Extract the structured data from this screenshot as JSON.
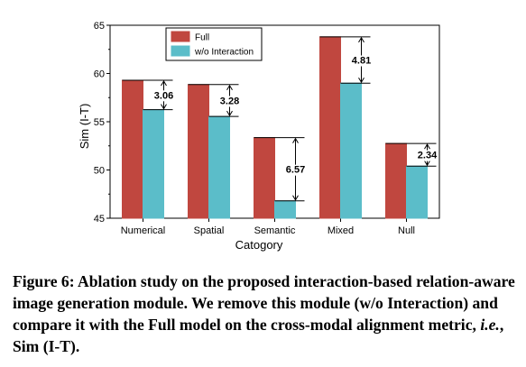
{
  "chart_data": {
    "type": "bar",
    "categories": [
      "Numerical",
      "Spatial",
      "Semantic",
      "Mixed",
      "Null"
    ],
    "series": [
      {
        "name": "Full",
        "values": [
          59.3,
          58.85,
          53.35,
          63.8,
          52.75
        ],
        "color": "#c0473f"
      },
      {
        "name": "w/o Interaction",
        "values": [
          56.25,
          55.55,
          46.8,
          59.0,
          50.4
        ],
        "color": "#5bbdc9"
      }
    ],
    "gap_labels": [
      "3.06",
      "3.28",
      "6.57",
      "4.81",
      "2.34"
    ],
    "xlabel": "Catogory",
    "ylabel": "Sim (I-T)",
    "ylim": [
      45,
      65
    ],
    "yticks": [
      "45",
      "50",
      "55",
      "60",
      "65"
    ],
    "grid": false,
    "legend_position": "top-center"
  },
  "caption": {
    "figure_label": "Figure 6:",
    "text_part1": " Ablation study on the proposed interaction-based relation-aware image generation module. We remove this module (w/o Interaction) and compare it with the Full model on the cross-modal alignment metric, ",
    "text_italic": "i.e.",
    "text_part2": ", Sim (I-T)."
  }
}
